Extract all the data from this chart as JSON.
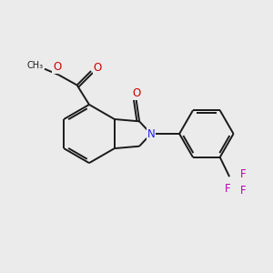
{
  "bg_color": "#ebebeb",
  "bond_color": "#1a1a1a",
  "n_color": "#2222ee",
  "o_color": "#cc0000",
  "f_color": "#bb00bb",
  "lw": 1.4,
  "dbo": 0.09,
  "fs": 8.5,
  "figsize": [
    3.0,
    3.0
  ],
  "dpi": 100,
  "xlim": [
    0,
    10
  ],
  "ylim": [
    0,
    10
  ]
}
